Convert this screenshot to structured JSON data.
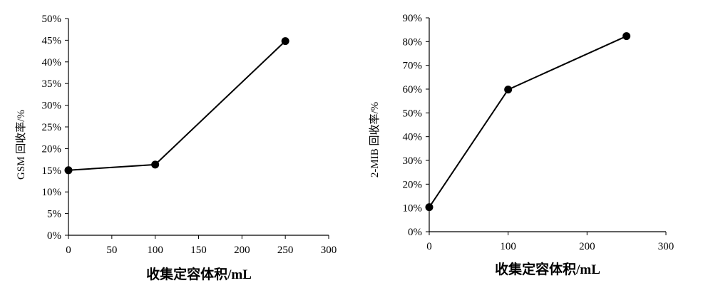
{
  "chart_data": [
    {
      "type": "line",
      "x": [
        0,
        100,
        250
      ],
      "series": [
        {
          "values": [
            15,
            16.3,
            44.8
          ]
        }
      ],
      "xlabel": "收集定容体积/mL",
      "ylabel": "GSM 回收率/%",
      "xlim": [
        0,
        300
      ],
      "ylim": [
        0,
        50
      ],
      "xticks": [
        0,
        50,
        100,
        150,
        200,
        250,
        300
      ],
      "xtick_labels": [
        "0",
        "50",
        "100",
        "150",
        "200",
        "250",
        "300"
      ],
      "yticks": [
        0,
        5,
        10,
        15,
        20,
        25,
        30,
        35,
        40,
        45,
        50
      ],
      "ytick_labels": [
        "0%",
        "5%",
        "10%",
        "15%",
        "20%",
        "25%",
        "30%",
        "35%",
        "40%",
        "45%",
        "50%"
      ],
      "grid": false,
      "line_color": "#000000"
    },
    {
      "type": "line",
      "x": [
        0,
        100,
        250
      ],
      "series": [
        {
          "values": [
            10.3,
            59.8,
            82.3
          ]
        }
      ],
      "xlabel": "收集定容体积/mL",
      "ylabel": "2-MIB 回收率/%",
      "xlim": [
        0,
        300
      ],
      "ylim": [
        0,
        90
      ],
      "xticks": [
        0,
        100,
        200,
        300
      ],
      "xtick_labels": [
        "0",
        "100",
        "200",
        "300"
      ],
      "yticks": [
        0,
        10,
        20,
        30,
        40,
        50,
        60,
        70,
        80,
        90
      ],
      "ytick_labels": [
        "0%",
        "10%",
        "20%",
        "30%",
        "40%",
        "50%",
        "60%",
        "70%",
        "80%",
        "90%"
      ],
      "grid": false,
      "line_color": "#000000"
    }
  ]
}
